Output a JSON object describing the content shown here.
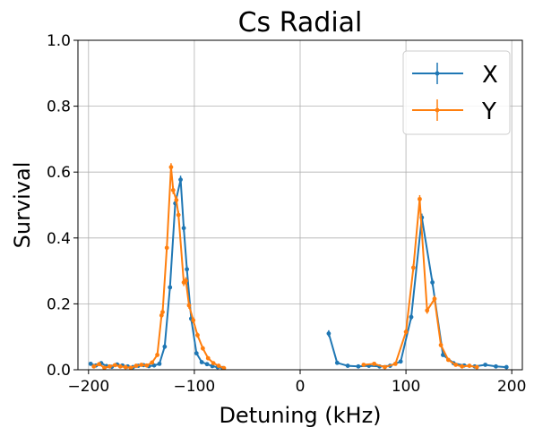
{
  "chart_data": {
    "type": "line",
    "title": "Cs Radial",
    "xlabel": "Detuning (kHz)",
    "ylabel": "Survival",
    "xlim": [
      -210,
      210
    ],
    "ylim": [
      0.0,
      1.0
    ],
    "xticks": [
      -200,
      -100,
      0,
      100,
      200
    ],
    "xtick_labels": [
      "−200",
      "−100",
      "0",
      "100",
      "200"
    ],
    "yticks": [
      0.0,
      0.2,
      0.4,
      0.6,
      0.8,
      1.0
    ],
    "ytick_labels": [
      "0.0",
      "0.2",
      "0.4",
      "0.6",
      "0.8",
      "1.0"
    ],
    "grid": true,
    "legend_position": "top-right",
    "series": [
      {
        "name": "X",
        "color": "#1f77b4",
        "segments": [
          [
            {
              "x": -198,
              "y": 0.018,
              "err": 0.004
            },
            {
              "x": -193,
              "y": 0.013,
              "err": 0.004
            },
            {
              "x": -188,
              "y": 0.02,
              "err": 0.004
            },
            {
              "x": -183,
              "y": 0.011,
              "err": 0.004
            },
            {
              "x": -178,
              "y": 0.009,
              "err": 0.004
            },
            {
              "x": -173,
              "y": 0.016,
              "err": 0.004
            },
            {
              "x": -168,
              "y": 0.013,
              "err": 0.004
            },
            {
              "x": -163,
              "y": 0.01,
              "err": 0.004
            },
            {
              "x": -158,
              "y": 0.008,
              "err": 0.004
            },
            {
              "x": -153,
              "y": 0.012,
              "err": 0.004
            },
            {
              "x": -148,
              "y": 0.014,
              "err": 0.004
            },
            {
              "x": -143,
              "y": 0.011,
              "err": 0.004
            },
            {
              "x": -138,
              "y": 0.013,
              "err": 0.004
            },
            {
              "x": -133,
              "y": 0.018,
              "err": 0.005
            },
            {
              "x": -128,
              "y": 0.07,
              "err": 0.007
            },
            {
              "x": -123,
              "y": 0.25,
              "err": 0.01
            },
            {
              "x": -118,
              "y": 0.505,
              "err": 0.012
            },
            {
              "x": -113,
              "y": 0.577,
              "err": 0.012
            },
            {
              "x": -110,
              "y": 0.43,
              "err": 0.012
            },
            {
              "x": -107,
              "y": 0.305,
              "err": 0.011
            },
            {
              "x": -103,
              "y": 0.155,
              "err": 0.009
            },
            {
              "x": -98,
              "y": 0.05,
              "err": 0.006
            },
            {
              "x": -93,
              "y": 0.023,
              "err": 0.005
            },
            {
              "x": -88,
              "y": 0.017,
              "err": 0.004
            },
            {
              "x": -83,
              "y": 0.011,
              "err": 0.004
            },
            {
              "x": -78,
              "y": 0.008,
              "err": 0.004
            },
            {
              "x": -73,
              "y": 0.005,
              "err": 0.003
            }
          ],
          [
            {
              "x": 27,
              "y": 0.11,
              "err": 0.01
            },
            {
              "x": 35,
              "y": 0.021,
              "err": 0.004
            },
            {
              "x": 45,
              "y": 0.012,
              "err": 0.004
            },
            {
              "x": 55,
              "y": 0.01,
              "err": 0.004
            },
            {
              "x": 65,
              "y": 0.012,
              "err": 0.004
            },
            {
              "x": 75,
              "y": 0.01,
              "err": 0.004
            },
            {
              "x": 85,
              "y": 0.012,
              "err": 0.004
            },
            {
              "x": 95,
              "y": 0.025,
              "err": 0.005
            },
            {
              "x": 105,
              "y": 0.16,
              "err": 0.009
            },
            {
              "x": 115,
              "y": 0.462,
              "err": 0.012
            },
            {
              "x": 125,
              "y": 0.265,
              "err": 0.011
            },
            {
              "x": 135,
              "y": 0.045,
              "err": 0.006
            },
            {
              "x": 145,
              "y": 0.02,
              "err": 0.005
            },
            {
              "x": 155,
              "y": 0.013,
              "err": 0.004
            },
            {
              "x": 165,
              "y": 0.01,
              "err": 0.004
            },
            {
              "x": 175,
              "y": 0.015,
              "err": 0.004
            },
            {
              "x": 185,
              "y": 0.01,
              "err": 0.004
            },
            {
              "x": 195,
              "y": 0.008,
              "err": 0.004
            }
          ]
        ]
      },
      {
        "name": "Y",
        "color": "#ff7f0e",
        "segments": [
          [
            {
              "x": -195,
              "y": 0.01,
              "err": 0.004
            },
            {
              "x": -190,
              "y": 0.017,
              "err": 0.004
            },
            {
              "x": -185,
              "y": 0.006,
              "err": 0.003
            },
            {
              "x": -180,
              "y": 0.01,
              "err": 0.004
            },
            {
              "x": -175,
              "y": 0.014,
              "err": 0.004
            },
            {
              "x": -170,
              "y": 0.01,
              "err": 0.004
            },
            {
              "x": -165,
              "y": 0.008,
              "err": 0.004
            },
            {
              "x": -160,
              "y": 0.006,
              "err": 0.003
            },
            {
              "x": -155,
              "y": 0.012,
              "err": 0.004
            },
            {
              "x": -150,
              "y": 0.015,
              "err": 0.004
            },
            {
              "x": -145,
              "y": 0.013,
              "err": 0.004
            },
            {
              "x": -140,
              "y": 0.022,
              "err": 0.005
            },
            {
              "x": -135,
              "y": 0.045,
              "err": 0.006
            },
            {
              "x": -131,
              "y": 0.165,
              "err": 0.01
            },
            {
              "x": -130,
              "y": 0.175,
              "err": 0.01
            },
            {
              "x": -126,
              "y": 0.37,
              "err": 0.012
            },
            {
              "x": -122,
              "y": 0.615,
              "err": 0.012
            },
            {
              "x": -120,
              "y": 0.545,
              "err": 0.012
            },
            {
              "x": -117,
              "y": 0.515,
              "err": 0.012
            },
            {
              "x": -115,
              "y": 0.47,
              "err": 0.012
            },
            {
              "x": -110,
              "y": 0.265,
              "err": 0.011
            },
            {
              "x": -108,
              "y": 0.27,
              "err": 0.011
            },
            {
              "x": -105,
              "y": 0.195,
              "err": 0.01
            },
            {
              "x": -101,
              "y": 0.15,
              "err": 0.009
            },
            {
              "x": -97,
              "y": 0.105,
              "err": 0.008
            },
            {
              "x": -92,
              "y": 0.065,
              "err": 0.007
            },
            {
              "x": -87,
              "y": 0.035,
              "err": 0.006
            },
            {
              "x": -82,
              "y": 0.02,
              "err": 0.005
            },
            {
              "x": -77,
              "y": 0.012,
              "err": 0.004
            },
            {
              "x": -72,
              "y": 0.005,
              "err": 0.003
            }
          ],
          [
            {
              "x": 60,
              "y": 0.015,
              "err": 0.004
            },
            {
              "x": 70,
              "y": 0.018,
              "err": 0.004
            },
            {
              "x": 80,
              "y": 0.008,
              "err": 0.004
            },
            {
              "x": 90,
              "y": 0.018,
              "err": 0.004
            },
            {
              "x": 100,
              "y": 0.115,
              "err": 0.008
            },
            {
              "x": 107,
              "y": 0.31,
              "err": 0.011
            },
            {
              "x": 113,
              "y": 0.518,
              "err": 0.012
            },
            {
              "x": 120,
              "y": 0.18,
              "err": 0.01
            },
            {
              "x": 127,
              "y": 0.215,
              "err": 0.01
            },
            {
              "x": 133,
              "y": 0.075,
              "err": 0.007
            },
            {
              "x": 140,
              "y": 0.03,
              "err": 0.005
            },
            {
              "x": 147,
              "y": 0.015,
              "err": 0.004
            },
            {
              "x": 153,
              "y": 0.01,
              "err": 0.004
            },
            {
              "x": 160,
              "y": 0.012,
              "err": 0.004
            },
            {
              "x": 167,
              "y": 0.008,
              "err": 0.004
            }
          ]
        ]
      }
    ]
  }
}
